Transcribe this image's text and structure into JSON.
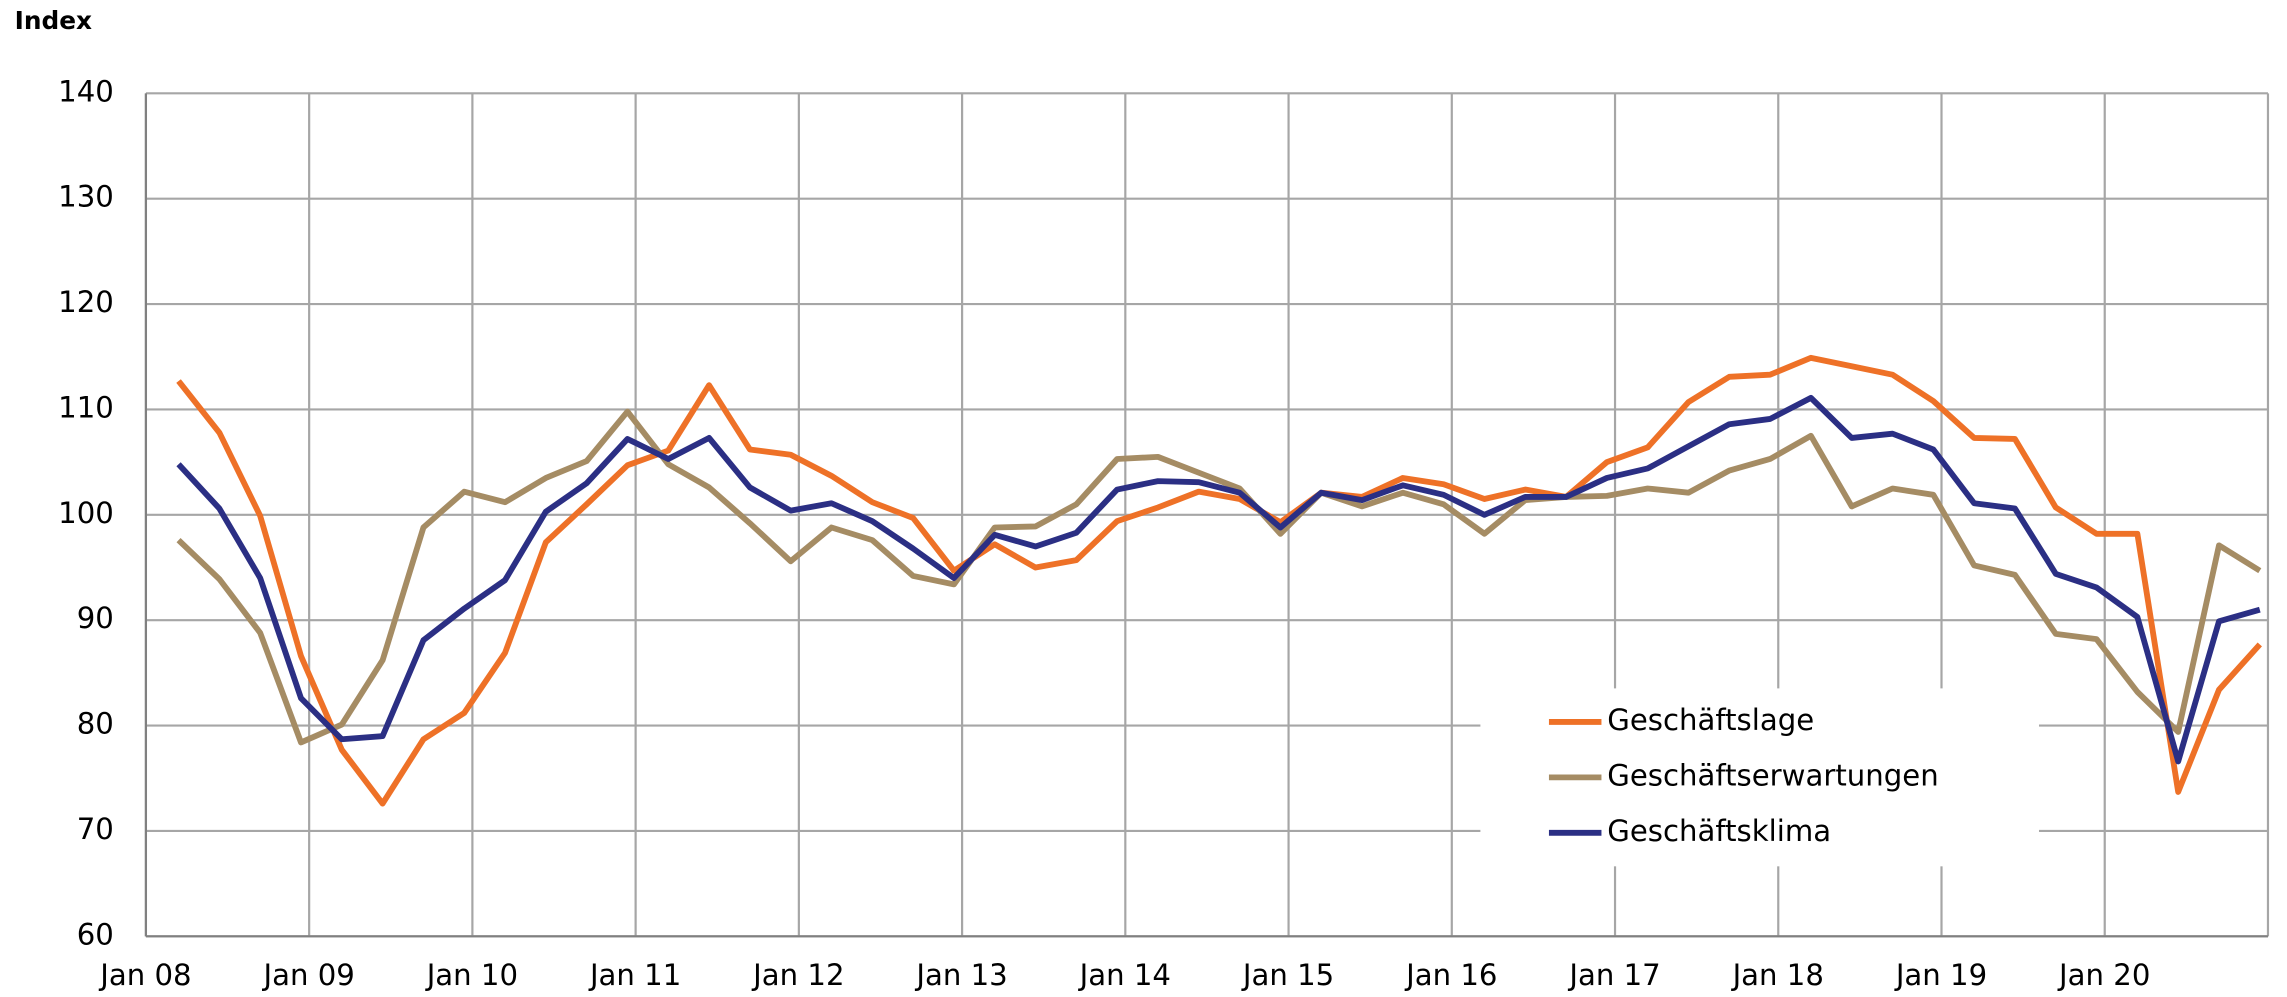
{
  "chart_data": {
    "type": "line",
    "y_label": "Index",
    "x": [
      2008.2,
      2008.45,
      2008.7,
      2008.95,
      2009.2,
      2009.45,
      2009.7,
      2009.95,
      2010.2,
      2010.45,
      2010.7,
      2010.95,
      2011.2,
      2011.45,
      2011.7,
      2011.95,
      2012.2,
      2012.45,
      2012.7,
      2012.95,
      2013.2,
      2013.45,
      2013.7,
      2013.95,
      2014.2,
      2014.45,
      2014.7,
      2014.95,
      2015.2,
      2015.45,
      2015.7,
      2015.95,
      2016.2,
      2016.45,
      2016.7,
      2016.95,
      2017.2,
      2017.45,
      2017.7,
      2017.95,
      2018.2,
      2018.45,
      2018.7,
      2018.95,
      2019.2,
      2019.45,
      2019.7,
      2019.95,
      2020.2,
      2020.45,
      2020.7,
      2020.95
    ],
    "series": [
      {
        "name": "Geschäftslage",
        "color": "#ee7127",
        "values": [
          112.7,
          107.8,
          99.9,
          86.6,
          77.7,
          72.6,
          78.7,
          81.2,
          86.9,
          97.4,
          101.0,
          104.7,
          106.1,
          112.3,
          106.2,
          105.7,
          103.7,
          101.2,
          99.7,
          94.7,
          97.2,
          95.0,
          95.7,
          99.4,
          100.7,
          102.2,
          101.5,
          99.3,
          102.1,
          101.7,
          103.5,
          102.9,
          101.5,
          102.4,
          101.7,
          105.0,
          106.4,
          110.7,
          113.1,
          113.3,
          114.9,
          114.1,
          113.3,
          110.8,
          107.3,
          107.2,
          100.7,
          98.2,
          98.2,
          73.7,
          83.4,
          87.7
        ]
      },
      {
        "name": "Geschäftserwartungen",
        "color": "#a58c64",
        "values": [
          97.6,
          93.9,
          88.8,
          78.4,
          80.1,
          86.2,
          98.8,
          102.2,
          101.2,
          103.5,
          105.1,
          109.8,
          104.8,
          102.6,
          99.2,
          95.6,
          98.8,
          97.6,
          94.2,
          93.4,
          98.8,
          98.9,
          101.0,
          105.3,
          105.5,
          104.0,
          102.5,
          98.2,
          102.1,
          100.8,
          102.1,
          101.0,
          98.2,
          101.4,
          101.7,
          101.8,
          102.5,
          102.1,
          104.2,
          105.3,
          107.5,
          100.8,
          102.5,
          101.9,
          95.2,
          94.3,
          88.7,
          88.2,
          83.2,
          79.4,
          97.1,
          94.7
        ]
      },
      {
        "name": "Geschäftsklima",
        "color": "#2b2f84",
        "values": [
          104.8,
          100.6,
          94.0,
          82.6,
          78.7,
          79.0,
          88.1,
          91.1,
          93.8,
          100.3,
          103.0,
          107.2,
          105.3,
          107.3,
          102.6,
          100.4,
          101.1,
          99.4,
          96.8,
          94.0,
          98.1,
          97.0,
          98.3,
          102.4,
          103.2,
          103.1,
          102.1,
          98.8,
          102.1,
          101.4,
          102.8,
          101.9,
          100.0,
          101.7,
          101.7,
          103.5,
          104.4,
          106.5,
          108.6,
          109.1,
          111.1,
          107.3,
          107.7,
          106.2,
          101.1,
          100.6,
          94.4,
          93.1,
          90.3,
          76.6,
          89.9,
          91.0
        ]
      }
    ],
    "xlim": [
      2008,
      2021
    ],
    "xticks": [
      {
        "value": 2008,
        "label": "Jan 08"
      },
      {
        "value": 2009,
        "label": "Jan 09"
      },
      {
        "value": 2010,
        "label": "Jan 10"
      },
      {
        "value": 2011,
        "label": "Jan 11"
      },
      {
        "value": 2012,
        "label": "Jan 12"
      },
      {
        "value": 2013,
        "label": "Jan 13"
      },
      {
        "value": 2014,
        "label": "Jan 14"
      },
      {
        "value": 2015,
        "label": "Jan 15"
      },
      {
        "value": 2016,
        "label": "Jan 16"
      },
      {
        "value": 2017,
        "label": "Jan 17"
      },
      {
        "value": 2018,
        "label": "Jan 18"
      },
      {
        "value": 2019,
        "label": "Jan 19"
      },
      {
        "value": 2020,
        "label": "Jan 20"
      }
    ],
    "ylim": [
      60,
      140
    ],
    "yticks": [
      60,
      70,
      80,
      90,
      100,
      110,
      120,
      130,
      140
    ],
    "grid": true,
    "legend_position": "lower right"
  }
}
